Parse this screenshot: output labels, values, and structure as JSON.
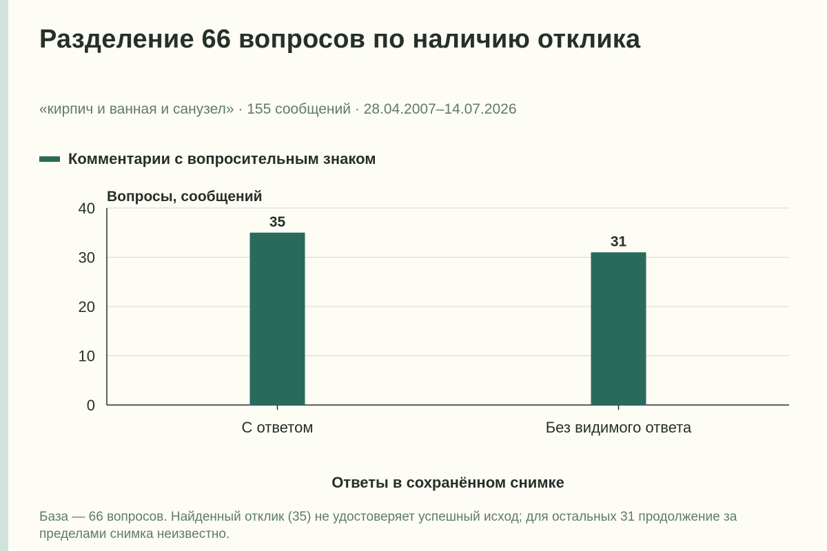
{
  "header": {
    "title": "Разделение 66 вопросов по наличию отклика",
    "subtitle": "«кирпич и ванная и санузел» · 155 сообщений · 28.04.2007–14.07.2026"
  },
  "legend": {
    "items": [
      {
        "label": "Комментарии с вопросительным знаком",
        "color": "#2a6a5a"
      }
    ]
  },
  "chart_data": {
    "type": "bar",
    "categories": [
      "С ответом",
      "Без видимого ответа"
    ],
    "values": [
      35,
      31
    ],
    "data_labels": [
      "35",
      "31"
    ],
    "ylabel": "Вопросы, сообщений",
    "xlabel": "Ответы в сохранённом снимке",
    "ylim": [
      0,
      40
    ],
    "yticks": [
      0,
      10,
      20,
      30,
      40
    ],
    "grid": true,
    "legend_position": "top-left",
    "bar_color": "#2a6a5a"
  },
  "footnote": "База — 66 вопросов. Найденный отклик (35) не удостоверяет успешный исход; для остальных 31 продолжение за пределами снимка неизвестно."
}
